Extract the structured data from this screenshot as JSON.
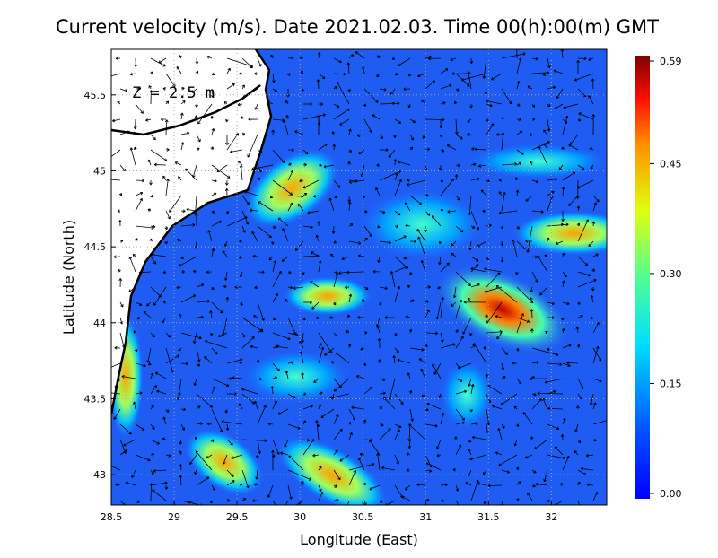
{
  "chart_data": {
    "type": "heatmap",
    "title": "Current velocity (m/s). Date 2021.02.03. Time 00(h):00(m) GMT",
    "annotation": "Z = 2.5 m",
    "x_label": "Longitude (East)",
    "y_label": "Latitude (North)",
    "xlim": [
      28.5,
      32.44
    ],
    "ylim": [
      42.8,
      45.8
    ],
    "xticks": [
      28.5,
      29,
      29.5,
      30,
      30.5,
      31,
      31.5,
      32
    ],
    "yticks": [
      43,
      43.5,
      44,
      44.5,
      45,
      45.5
    ],
    "grid": true,
    "colorbar": {
      "lim": [
        0,
        0.59
      ],
      "ticks": [
        {
          "value": 0,
          "label": "0.00"
        },
        0.15,
        {
          "value": 0.3,
          "label": "0.30"
        },
        0.45,
        0.59
      ]
    }
  }
}
